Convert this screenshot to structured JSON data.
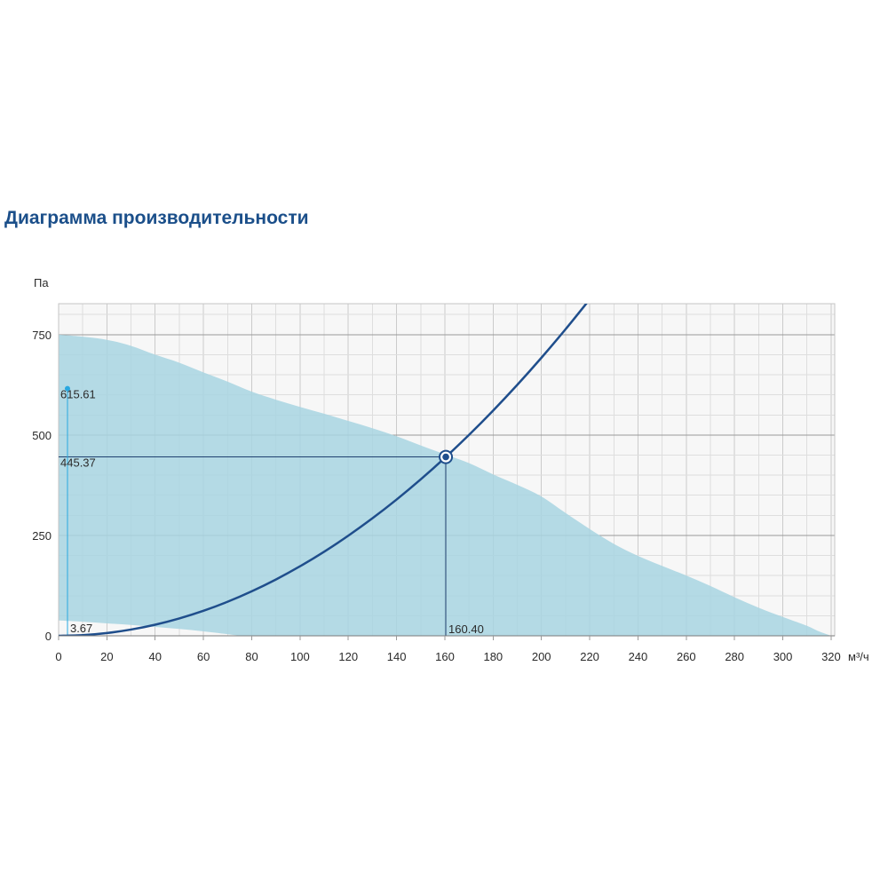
{
  "chart_data": {
    "type": "area",
    "title": "Диаграмма производительности",
    "xlabel": "м³/ч",
    "ylabel": "Па",
    "xlim": [
      0,
      321.5
    ],
    "ylim": [
      0,
      827
    ],
    "x_ticks": [
      0,
      20,
      40,
      60,
      80,
      100,
      120,
      140,
      160,
      180,
      200,
      220,
      240,
      260,
      280,
      300,
      320
    ],
    "y_ticks": [
      0,
      250,
      500,
      750
    ],
    "grid": true,
    "minor_grid_step": {
      "x": 10,
      "y": 50
    },
    "series": [
      {
        "type": "area",
        "color": "#a8d5e2",
        "upper": [
          [
            0,
            750
          ],
          [
            10,
            745
          ],
          [
            20,
            737
          ],
          [
            30,
            722
          ],
          [
            40,
            700
          ],
          [
            50,
            680
          ],
          [
            60,
            656
          ],
          [
            70,
            633
          ],
          [
            80,
            608
          ],
          [
            90,
            588
          ],
          [
            100,
            570
          ],
          [
            110,
            553
          ],
          [
            120,
            535
          ],
          [
            130,
            517
          ],
          [
            140,
            497
          ],
          [
            150,
            474
          ],
          [
            160,
            452
          ],
          [
            170,
            430
          ],
          [
            180,
            402
          ],
          [
            190,
            376
          ],
          [
            200,
            347
          ],
          [
            210,
            306
          ],
          [
            220,
            266
          ],
          [
            230,
            229
          ],
          [
            240,
            199
          ],
          [
            250,
            174
          ],
          [
            260,
            150
          ],
          [
            270,
            124
          ],
          [
            280,
            96
          ],
          [
            290,
            70
          ],
          [
            300,
            47
          ],
          [
            310,
            25
          ],
          [
            315,
            11
          ],
          [
            320,
            0
          ]
        ],
        "lower": [
          [
            0,
            38
          ],
          [
            10,
            35
          ],
          [
            20,
            31
          ],
          [
            30,
            27
          ],
          [
            40,
            22
          ],
          [
            50,
            17
          ],
          [
            60,
            11
          ],
          [
            70,
            4
          ],
          [
            76,
            0
          ]
        ]
      },
      {
        "type": "line",
        "color": "#1f4e8c",
        "points": [
          [
            0,
            0
          ],
          [
            10,
            1.7
          ],
          [
            20,
            6.9
          ],
          [
            30,
            15.6
          ],
          [
            40,
            27.7
          ],
          [
            50,
            43.3
          ],
          [
            60,
            62.3
          ],
          [
            70,
            84.8
          ],
          [
            80,
            110.8
          ],
          [
            90,
            140.2
          ],
          [
            100,
            173.1
          ],
          [
            110,
            209.5
          ],
          [
            120,
            249.3
          ],
          [
            130,
            292.6
          ],
          [
            140,
            339.3
          ],
          [
            150,
            389.5
          ],
          [
            160,
            443.2
          ],
          [
            170,
            500.3
          ],
          [
            180,
            560.9
          ],
          [
            190,
            624.9
          ],
          [
            200,
            692.4
          ],
          [
            210,
            763.4
          ],
          [
            220,
            837.8
          ]
        ]
      }
    ],
    "operating_point": {
      "x": 160.4,
      "y": 445.37,
      "x_label": "160.40",
      "y_label": "445.37",
      "color": "#1f3f6e"
    },
    "marker_point": {
      "x": 3.67,
      "y": 615.61,
      "x_label": "3.67",
      "y_label": "615.61",
      "color": "#29a8e0"
    }
  }
}
